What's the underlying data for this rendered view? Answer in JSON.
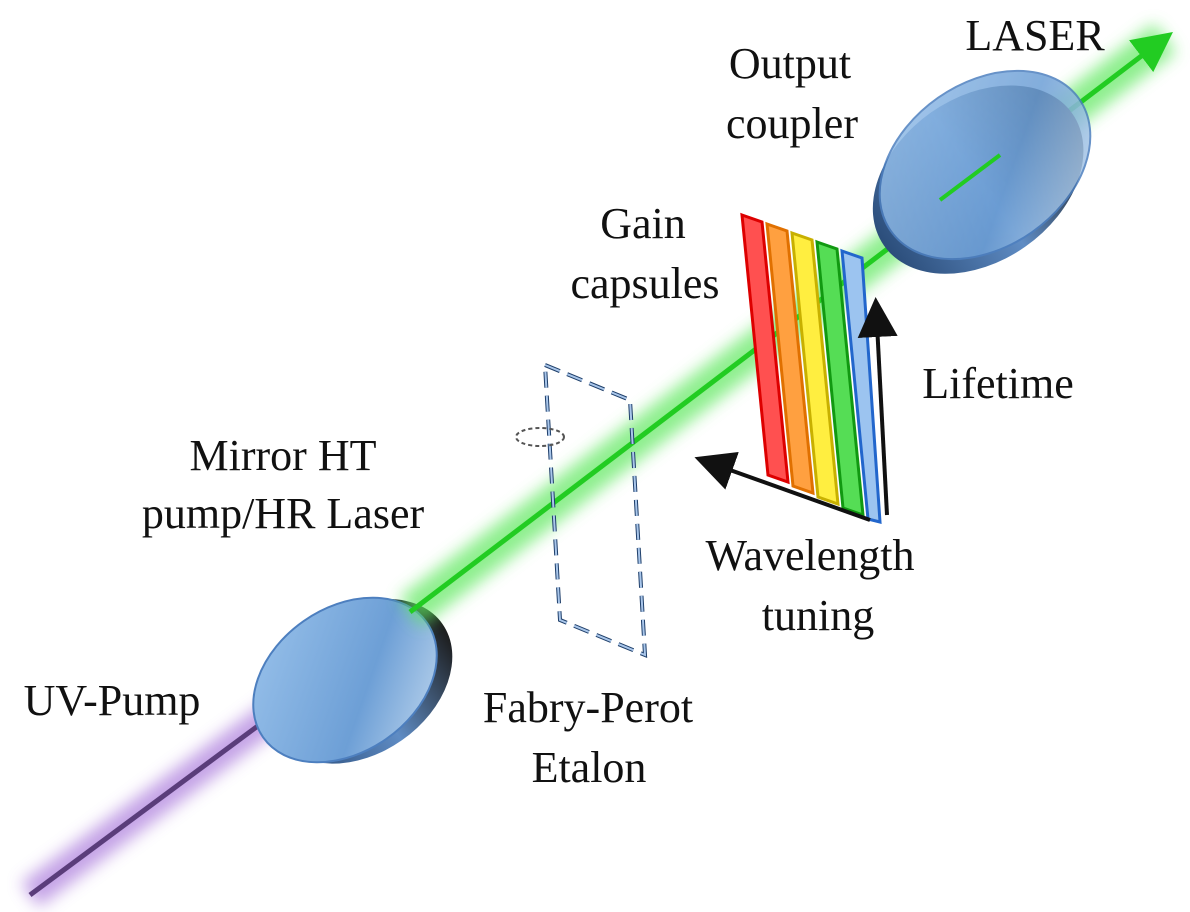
{
  "labels": {
    "laser": "LASER",
    "output_coupler": [
      "Output",
      "coupler"
    ],
    "gain_capsules": [
      "Gain",
      "capsules"
    ],
    "lifetime": "Lifetime",
    "mirror": [
      "Mirror HT",
      "pump/HR Laser"
    ],
    "wavelength_tuning": [
      "Wavelength",
      "tuning"
    ],
    "uv_pump": "UV-Pump",
    "etalon": [
      "Fabry-Perot",
      "Etalon"
    ]
  }
}
